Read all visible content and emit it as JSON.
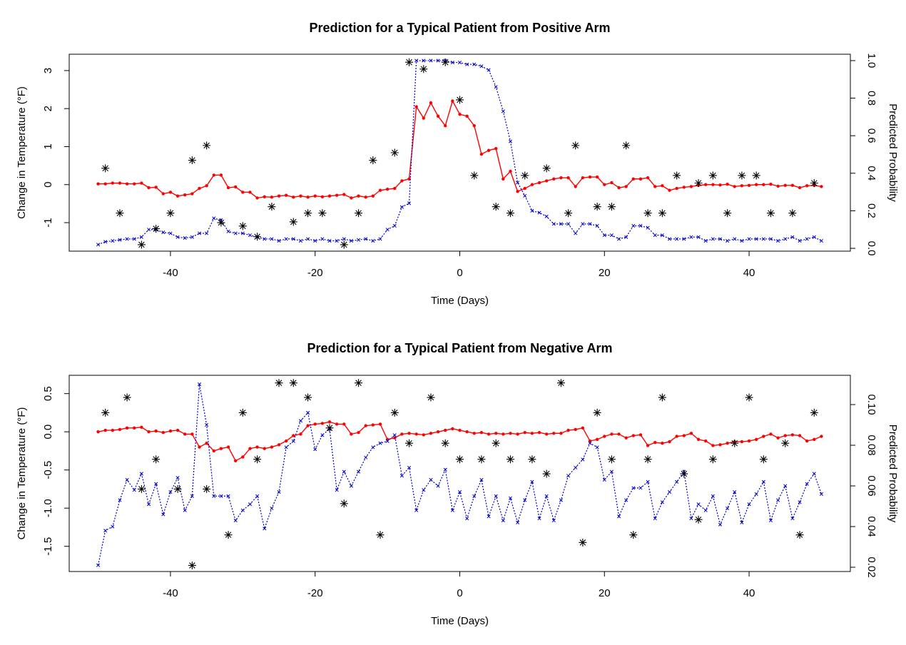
{
  "chart_data": [
    {
      "type": "line",
      "title": "Prediction for a Typical Patient from Positive Arm",
      "x_label": "Time (Days)",
      "y_label": "Change in Temperature (°F)",
      "y2_label": "Predicted Probability",
      "x": [
        -50,
        -49,
        -48,
        -47,
        -46,
        -45,
        -44,
        -43,
        -42,
        -41,
        -40,
        -39,
        -38,
        -37,
        -36,
        -35,
        -34,
        -33,
        -32,
        -31,
        -30,
        -29,
        -28,
        -27,
        -26,
        -25,
        -24,
        -23,
        -22,
        -21,
        -20,
        -19,
        -18,
        -17,
        -16,
        -15,
        -14,
        -13,
        -12,
        -11,
        -10,
        -9,
        -8,
        -7,
        -6,
        -5,
        -4,
        -3,
        -2,
        -1,
        0,
        1,
        2,
        3,
        4,
        5,
        6,
        7,
        8,
        9,
        10,
        11,
        12,
        13,
        14,
        15,
        16,
        17,
        18,
        19,
        20,
        21,
        22,
        23,
        24,
        25,
        26,
        27,
        28,
        29,
        30,
        31,
        32,
        33,
        34,
        35,
        36,
        37,
        38,
        39,
        40,
        41,
        42,
        43,
        44,
        45,
        46,
        47,
        48,
        49,
        50
      ],
      "xlim": [
        -54,
        54
      ],
      "xticks": [
        -40,
        -20,
        0,
        20,
        40
      ],
      "ylim": [
        -1.75,
        3.43
      ],
      "yticks": [
        -1,
        0,
        1,
        2,
        3
      ],
      "y2lim": [
        -0.015,
        1.034
      ],
      "y2ticks": [
        {
          "value": 0,
          "label": "0.0"
        },
        0.2,
        0.4,
        0.6,
        0.8,
        {
          "value": 1,
          "label": "1.0"
        }
      ],
      "series": [
        {
          "color": "#ff0000",
          "line": "solid",
          "marker": "dot",
          "values": [
            0.02,
            0.02,
            0.04,
            0.04,
            0.02,
            0.02,
            0.04,
            -0.08,
            -0.07,
            -0.24,
            -0.2,
            -0.3,
            -0.27,
            -0.24,
            -0.1,
            -0.03,
            0.25,
            0.25,
            -0.08,
            -0.06,
            -0.2,
            -0.2,
            -0.35,
            -0.32,
            -0.33,
            -0.3,
            -0.28,
            -0.33,
            -0.3,
            -0.33,
            -0.3,
            -0.32,
            -0.3,
            -0.28,
            -0.26,
            -0.35,
            -0.3,
            -0.33,
            -0.3,
            -0.15,
            -0.12,
            -0.1,
            0.1,
            0.15,
            2.05,
            1.75,
            2.15,
            1.8,
            1.55,
            2.2,
            1.85,
            1.8,
            1.55,
            0.8,
            0.9,
            0.95,
            0.15,
            0.35,
            -0.18,
            -0.1,
            0.0,
            0.05,
            0.1,
            0.15,
            0.18,
            0.18,
            -0.05,
            0.18,
            0.2,
            0.2,
            0.0,
            0.05,
            -0.08,
            -0.05,
            0.15,
            0.15,
            0.18,
            -0.05,
            -0.03,
            -0.15,
            -0.1,
            -0.07,
            -0.05,
            -0.02,
            0.0,
            0.0,
            -0.01,
            0.01,
            -0.05,
            -0.03,
            -0.02,
            0.0,
            0.0,
            0.01,
            -0.04,
            -0.02,
            -0.02,
            -0.08,
            -0.03,
            -0.02,
            -0.05
          ]
        },
        {
          "color": "#0000cd",
          "line": "dotted",
          "marker": "x",
          "axis": "y2",
          "values": [
            0.02,
            0.035,
            0.04,
            0.045,
            0.05,
            0.05,
            0.06,
            0.1,
            0.1,
            0.085,
            0.08,
            0.06,
            0.055,
            0.06,
            0.08,
            0.08,
            0.16,
            0.15,
            0.09,
            0.08,
            0.08,
            0.07,
            0.06,
            0.05,
            0.05,
            0.04,
            0.05,
            0.05,
            0.04,
            0.05,
            0.04,
            0.05,
            0.04,
            0.04,
            0.05,
            0.04,
            0.045,
            0.05,
            0.04,
            0.05,
            0.1,
            0.12,
            0.22,
            0.24,
            1.0,
            1.0,
            1.0,
            1.0,
            1.0,
            0.99,
            0.99,
            0.98,
            0.98,
            0.97,
            0.95,
            0.86,
            0.73,
            0.57,
            0.35,
            0.28,
            0.2,
            0.19,
            0.17,
            0.13,
            0.13,
            0.13,
            0.08,
            0.13,
            0.13,
            0.12,
            0.07,
            0.07,
            0.05,
            0.06,
            0.12,
            0.12,
            0.11,
            0.07,
            0.07,
            0.05,
            0.05,
            0.05,
            0.06,
            0.06,
            0.04,
            0.05,
            0.05,
            0.04,
            0.05,
            0.04,
            0.05,
            0.05,
            0.05,
            0.05,
            0.04,
            0.05,
            0.06,
            0.04,
            0.05,
            0.06,
            0.04
          ]
        },
        {
          "color": "#000000",
          "line": "none",
          "marker": "asterisk",
          "values": [
            null,
            0.43,
            null,
            -0.75,
            null,
            null,
            -1.58,
            null,
            -1.16,
            null,
            -0.75,
            null,
            null,
            0.64,
            null,
            1.03,
            null,
            -1.0,
            null,
            null,
            -1.09,
            null,
            -1.37,
            null,
            -0.58,
            null,
            null,
            -0.98,
            null,
            -0.75,
            null,
            -0.75,
            null,
            null,
            -1.58,
            null,
            -0.75,
            null,
            0.64,
            null,
            null,
            0.84,
            null,
            3.22,
            null,
            3.04,
            null,
            null,
            3.22,
            null,
            2.23,
            null,
            0.24,
            null,
            null,
            -0.58,
            null,
            -0.75,
            null,
            0.24,
            null,
            null,
            0.43,
            null,
            null,
            -0.75,
            1.03,
            null,
            null,
            -0.58,
            null,
            -0.58,
            null,
            1.03,
            null,
            null,
            -0.75,
            null,
            -0.75,
            null,
            0.24,
            null,
            null,
            0.04,
            null,
            0.24,
            null,
            -0.75,
            null,
            0.24,
            null,
            0.24,
            null,
            -0.75,
            null,
            null,
            -0.75,
            null,
            null,
            0.04,
            null
          ]
        }
      ]
    },
    {
      "type": "line",
      "title": "Prediction for a Typical Patient from Negative Arm",
      "x_label": "Time (Days)",
      "y_label": "Change in Temperature (°F)",
      "y2_label": "Predicted Probability",
      "x": [
        -50,
        -49,
        -48,
        -47,
        -46,
        -45,
        -44,
        -43,
        -42,
        -41,
        -40,
        -39,
        -38,
        -37,
        -36,
        -35,
        -34,
        -33,
        -32,
        -31,
        -30,
        -29,
        -28,
        -27,
        -26,
        -25,
        -24,
        -23,
        -22,
        -21,
        -20,
        -19,
        -18,
        -17,
        -16,
        -15,
        -14,
        -13,
        -12,
        -11,
        -10,
        -9,
        -8,
        -7,
        -6,
        -5,
        -4,
        -3,
        -2,
        -1,
        0,
        1,
        2,
        3,
        4,
        5,
        6,
        7,
        8,
        9,
        10,
        11,
        12,
        13,
        14,
        15,
        16,
        17,
        18,
        19,
        20,
        21,
        22,
        23,
        24,
        25,
        26,
        27,
        28,
        29,
        30,
        31,
        32,
        33,
        34,
        35,
        36,
        37,
        38,
        39,
        40,
        41,
        42,
        43,
        44,
        45,
        46,
        47,
        48,
        49,
        50
      ],
      "xlim": [
        -54,
        54
      ],
      "xticks": [
        -40,
        -20,
        0,
        20,
        40
      ],
      "ylim": [
        -1.83,
        0.74
      ],
      "yticks": [
        -1.5,
        {
          "value": -1,
          "label": "-1.0"
        },
        -0.5,
        {
          "value": 0,
          "label": "0.0"
        },
        0.5
      ],
      "y2lim": [
        0.0179,
        0.1144
      ],
      "y2ticks": [
        0.02,
        0.04,
        0.06,
        0.08,
        {
          "value": 0.1,
          "label": "0.10"
        }
      ],
      "series": [
        {
          "color": "#ff0000",
          "line": "solid",
          "marker": "dot",
          "values": [
            0.0,
            0.02,
            0.02,
            0.03,
            0.05,
            0.05,
            0.06,
            0.0,
            0.01,
            -0.01,
            0.01,
            0.02,
            -0.03,
            -0.03,
            -0.2,
            -0.15,
            -0.25,
            -0.22,
            -0.2,
            -0.38,
            -0.33,
            -0.22,
            -0.2,
            -0.22,
            -0.2,
            -0.17,
            -0.12,
            -0.05,
            -0.03,
            0.08,
            0.1,
            0.11,
            0.13,
            0.1,
            0.1,
            -0.03,
            -0.01,
            0.08,
            0.09,
            0.1,
            -0.1,
            -0.08,
            -0.03,
            -0.02,
            -0.03,
            -0.04,
            -0.02,
            0.0,
            0.02,
            0.04,
            0.02,
            0.0,
            -0.02,
            -0.01,
            -0.03,
            -0.02,
            -0.03,
            -0.02,
            -0.03,
            -0.01,
            -0.02,
            -0.01,
            -0.03,
            -0.02,
            -0.02,
            0.02,
            0.03,
            0.05,
            -0.12,
            -0.1,
            -0.06,
            -0.03,
            -0.03,
            -0.08,
            -0.05,
            -0.04,
            -0.18,
            -0.14,
            -0.15,
            -0.13,
            -0.06,
            -0.05,
            -0.02,
            -0.1,
            -0.12,
            -0.18,
            -0.17,
            -0.15,
            -0.13,
            -0.13,
            -0.12,
            -0.1,
            -0.06,
            -0.03,
            -0.08,
            -0.05,
            -0.04,
            -0.05,
            -0.12,
            -0.1,
            -0.06
          ]
        },
        {
          "color": "#0000cd",
          "line": "dotted",
          "marker": "x",
          "axis": "y2",
          "values": [
            0.021,
            0.038,
            0.04,
            0.053,
            0.063,
            0.058,
            0.066,
            0.051,
            0.061,
            0.046,
            0.057,
            0.064,
            0.048,
            0.055,
            0.11,
            0.09,
            0.055,
            0.055,
            0.055,
            0.043,
            0.048,
            0.051,
            0.055,
            0.039,
            0.049,
            0.057,
            0.079,
            0.082,
            0.092,
            0.096,
            0.078,
            0.085,
            0.088,
            0.058,
            0.067,
            0.06,
            0.067,
            0.074,
            0.079,
            0.081,
            0.082,
            0.085,
            0.065,
            0.069,
            0.048,
            0.058,
            0.063,
            0.06,
            0.068,
            0.048,
            0.057,
            0.044,
            0.055,
            0.063,
            0.045,
            0.055,
            0.043,
            0.054,
            0.042,
            0.053,
            0.062,
            0.044,
            0.055,
            0.043,
            0.053,
            0.065,
            0.069,
            0.073,
            0.081,
            0.079,
            0.063,
            0.067,
            0.045,
            0.053,
            0.059,
            0.059,
            0.062,
            0.044,
            0.052,
            0.057,
            0.062,
            0.067,
            0.044,
            0.051,
            0.048,
            0.055,
            0.041,
            0.049,
            0.057,
            0.042,
            0.051,
            0.056,
            0.062,
            0.043,
            0.053,
            0.06,
            0.044,
            0.052,
            0.061,
            0.066,
            0.056
          ]
        },
        {
          "color": "#000000",
          "line": "none",
          "marker": "asterisk",
          "values": [
            null,
            0.25,
            null,
            null,
            0.45,
            null,
            -0.75,
            null,
            -0.36,
            null,
            null,
            -0.75,
            null,
            -1.75,
            null,
            -0.75,
            null,
            null,
            -1.35,
            null,
            0.25,
            null,
            -0.36,
            null,
            null,
            0.64,
            null,
            0.64,
            null,
            0.45,
            null,
            null,
            0.05,
            null,
            -0.94,
            null,
            0.64,
            null,
            null,
            -1.35,
            null,
            0.25,
            null,
            -0.15,
            null,
            null,
            0.45,
            null,
            -0.15,
            null,
            -0.36,
            null,
            null,
            -0.36,
            null,
            -0.15,
            null,
            -0.36,
            null,
            null,
            -0.36,
            null,
            -0.55,
            null,
            0.64,
            null,
            null,
            -1.45,
            null,
            0.25,
            null,
            -0.36,
            null,
            null,
            -1.35,
            null,
            -0.36,
            null,
            0.45,
            null,
            null,
            -0.55,
            null,
            -1.15,
            null,
            -0.36,
            null,
            null,
            -0.15,
            null,
            0.45,
            null,
            -0.36,
            null,
            null,
            -0.15,
            null,
            -1.35,
            null,
            0.25,
            null
          ]
        }
      ]
    }
  ]
}
